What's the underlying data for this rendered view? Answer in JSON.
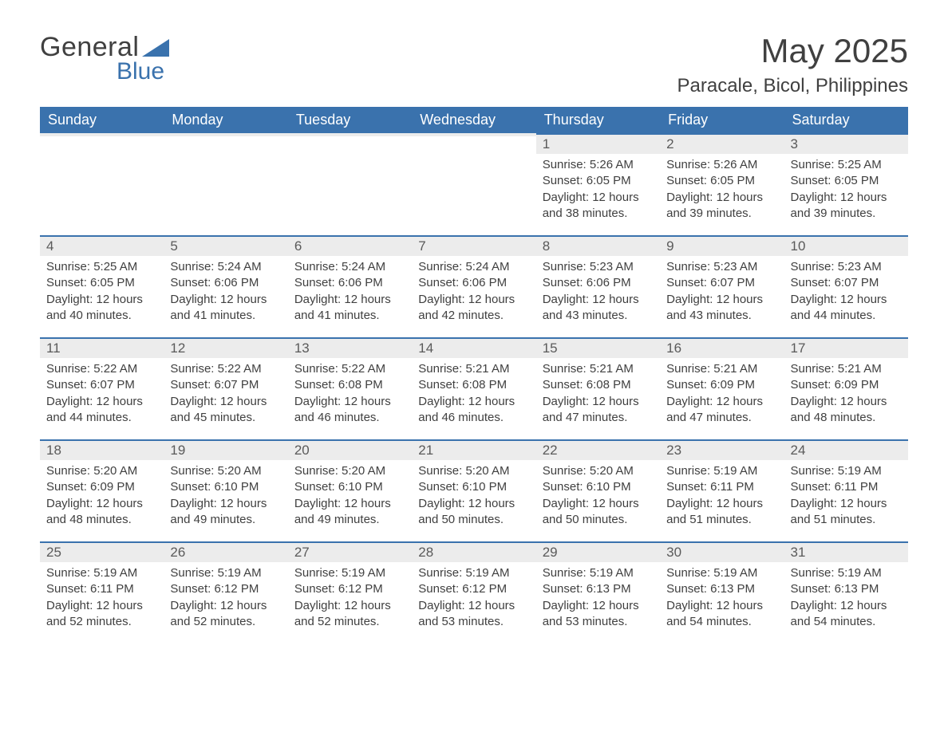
{
  "logo": {
    "line1": "General",
    "line2": "Blue"
  },
  "title": "May 2025",
  "location": "Paracale, Bicol, Philippines",
  "colors": {
    "header_bg": "#3a72ad",
    "header_text": "#ffffff",
    "daynum_bg": "#ececec",
    "daynum_border": "#3a72ad",
    "body_text": "#404040",
    "logo_accent": "#3a72ad"
  },
  "weekdays": [
    "Sunday",
    "Monday",
    "Tuesday",
    "Wednesday",
    "Thursday",
    "Friday",
    "Saturday"
  ],
  "weeks": [
    [
      {
        "day": "",
        "lines": []
      },
      {
        "day": "",
        "lines": []
      },
      {
        "day": "",
        "lines": []
      },
      {
        "day": "",
        "lines": []
      },
      {
        "day": "1",
        "lines": [
          "Sunrise: 5:26 AM",
          "Sunset: 6:05 PM",
          "Daylight: 12 hours and 38 minutes."
        ]
      },
      {
        "day": "2",
        "lines": [
          "Sunrise: 5:26 AM",
          "Sunset: 6:05 PM",
          "Daylight: 12 hours and 39 minutes."
        ]
      },
      {
        "day": "3",
        "lines": [
          "Sunrise: 5:25 AM",
          "Sunset: 6:05 PM",
          "Daylight: 12 hours and 39 minutes."
        ]
      }
    ],
    [
      {
        "day": "4",
        "lines": [
          "Sunrise: 5:25 AM",
          "Sunset: 6:05 PM",
          "Daylight: 12 hours and 40 minutes."
        ]
      },
      {
        "day": "5",
        "lines": [
          "Sunrise: 5:24 AM",
          "Sunset: 6:06 PM",
          "Daylight: 12 hours and 41 minutes."
        ]
      },
      {
        "day": "6",
        "lines": [
          "Sunrise: 5:24 AM",
          "Sunset: 6:06 PM",
          "Daylight: 12 hours and 41 minutes."
        ]
      },
      {
        "day": "7",
        "lines": [
          "Sunrise: 5:24 AM",
          "Sunset: 6:06 PM",
          "Daylight: 12 hours and 42 minutes."
        ]
      },
      {
        "day": "8",
        "lines": [
          "Sunrise: 5:23 AM",
          "Sunset: 6:06 PM",
          "Daylight: 12 hours and 43 minutes."
        ]
      },
      {
        "day": "9",
        "lines": [
          "Sunrise: 5:23 AM",
          "Sunset: 6:07 PM",
          "Daylight: 12 hours and 43 minutes."
        ]
      },
      {
        "day": "10",
        "lines": [
          "Sunrise: 5:23 AM",
          "Sunset: 6:07 PM",
          "Daylight: 12 hours and 44 minutes."
        ]
      }
    ],
    [
      {
        "day": "11",
        "lines": [
          "Sunrise: 5:22 AM",
          "Sunset: 6:07 PM",
          "Daylight: 12 hours and 44 minutes."
        ]
      },
      {
        "day": "12",
        "lines": [
          "Sunrise: 5:22 AM",
          "Sunset: 6:07 PM",
          "Daylight: 12 hours and 45 minutes."
        ]
      },
      {
        "day": "13",
        "lines": [
          "Sunrise: 5:22 AM",
          "Sunset: 6:08 PM",
          "Daylight: 12 hours and 46 minutes."
        ]
      },
      {
        "day": "14",
        "lines": [
          "Sunrise: 5:21 AM",
          "Sunset: 6:08 PM",
          "Daylight: 12 hours and 46 minutes."
        ]
      },
      {
        "day": "15",
        "lines": [
          "Sunrise: 5:21 AM",
          "Sunset: 6:08 PM",
          "Daylight: 12 hours and 47 minutes."
        ]
      },
      {
        "day": "16",
        "lines": [
          "Sunrise: 5:21 AM",
          "Sunset: 6:09 PM",
          "Daylight: 12 hours and 47 minutes."
        ]
      },
      {
        "day": "17",
        "lines": [
          "Sunrise: 5:21 AM",
          "Sunset: 6:09 PM",
          "Daylight: 12 hours and 48 minutes."
        ]
      }
    ],
    [
      {
        "day": "18",
        "lines": [
          "Sunrise: 5:20 AM",
          "Sunset: 6:09 PM",
          "Daylight: 12 hours and 48 minutes."
        ]
      },
      {
        "day": "19",
        "lines": [
          "Sunrise: 5:20 AM",
          "Sunset: 6:10 PM",
          "Daylight: 12 hours and 49 minutes."
        ]
      },
      {
        "day": "20",
        "lines": [
          "Sunrise: 5:20 AM",
          "Sunset: 6:10 PM",
          "Daylight: 12 hours and 49 minutes."
        ]
      },
      {
        "day": "21",
        "lines": [
          "Sunrise: 5:20 AM",
          "Sunset: 6:10 PM",
          "Daylight: 12 hours and 50 minutes."
        ]
      },
      {
        "day": "22",
        "lines": [
          "Sunrise: 5:20 AM",
          "Sunset: 6:10 PM",
          "Daylight: 12 hours and 50 minutes."
        ]
      },
      {
        "day": "23",
        "lines": [
          "Sunrise: 5:19 AM",
          "Sunset: 6:11 PM",
          "Daylight: 12 hours and 51 minutes."
        ]
      },
      {
        "day": "24",
        "lines": [
          "Sunrise: 5:19 AM",
          "Sunset: 6:11 PM",
          "Daylight: 12 hours and 51 minutes."
        ]
      }
    ],
    [
      {
        "day": "25",
        "lines": [
          "Sunrise: 5:19 AM",
          "Sunset: 6:11 PM",
          "Daylight: 12 hours and 52 minutes."
        ]
      },
      {
        "day": "26",
        "lines": [
          "Sunrise: 5:19 AM",
          "Sunset: 6:12 PM",
          "Daylight: 12 hours and 52 minutes."
        ]
      },
      {
        "day": "27",
        "lines": [
          "Sunrise: 5:19 AM",
          "Sunset: 6:12 PM",
          "Daylight: 12 hours and 52 minutes."
        ]
      },
      {
        "day": "28",
        "lines": [
          "Sunrise: 5:19 AM",
          "Sunset: 6:12 PM",
          "Daylight: 12 hours and 53 minutes."
        ]
      },
      {
        "day": "29",
        "lines": [
          "Sunrise: 5:19 AM",
          "Sunset: 6:13 PM",
          "Daylight: 12 hours and 53 minutes."
        ]
      },
      {
        "day": "30",
        "lines": [
          "Sunrise: 5:19 AM",
          "Sunset: 6:13 PM",
          "Daylight: 12 hours and 54 minutes."
        ]
      },
      {
        "day": "31",
        "lines": [
          "Sunrise: 5:19 AM",
          "Sunset: 6:13 PM",
          "Daylight: 12 hours and 54 minutes."
        ]
      }
    ]
  ]
}
